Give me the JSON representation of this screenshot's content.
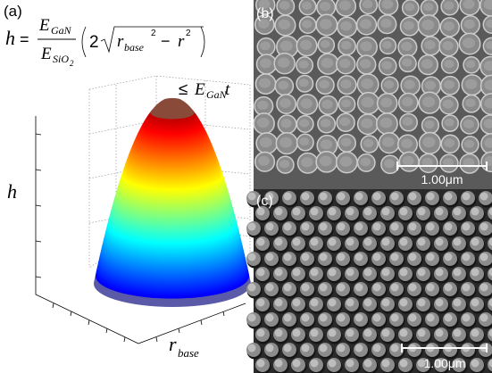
{
  "panel_a": {
    "label": "(a)",
    "equation": {
      "lhs": "h",
      "equals": "=",
      "num": "E",
      "num_sub": "GaN",
      "den": "E",
      "den_sub": "SiO",
      "den_subsub": "2",
      "factor": "2",
      "r1": "r",
      "r1_sub": "base",
      "r1_sup": "2",
      "minus": "−",
      "r2": "r",
      "r2_sup": "2"
    },
    "bound": {
      "le": "≤",
      "e": "E",
      "e_sub": "GaN",
      "t": "t"
    },
    "z_label": "h",
    "r_label": "r",
    "r_label_sub": "base"
  },
  "panel_b": {
    "label": "(b)",
    "scale_bar": "1.00μm"
  },
  "panel_c": {
    "label": "(c)",
    "scale_bar": "1.00μm"
  }
}
